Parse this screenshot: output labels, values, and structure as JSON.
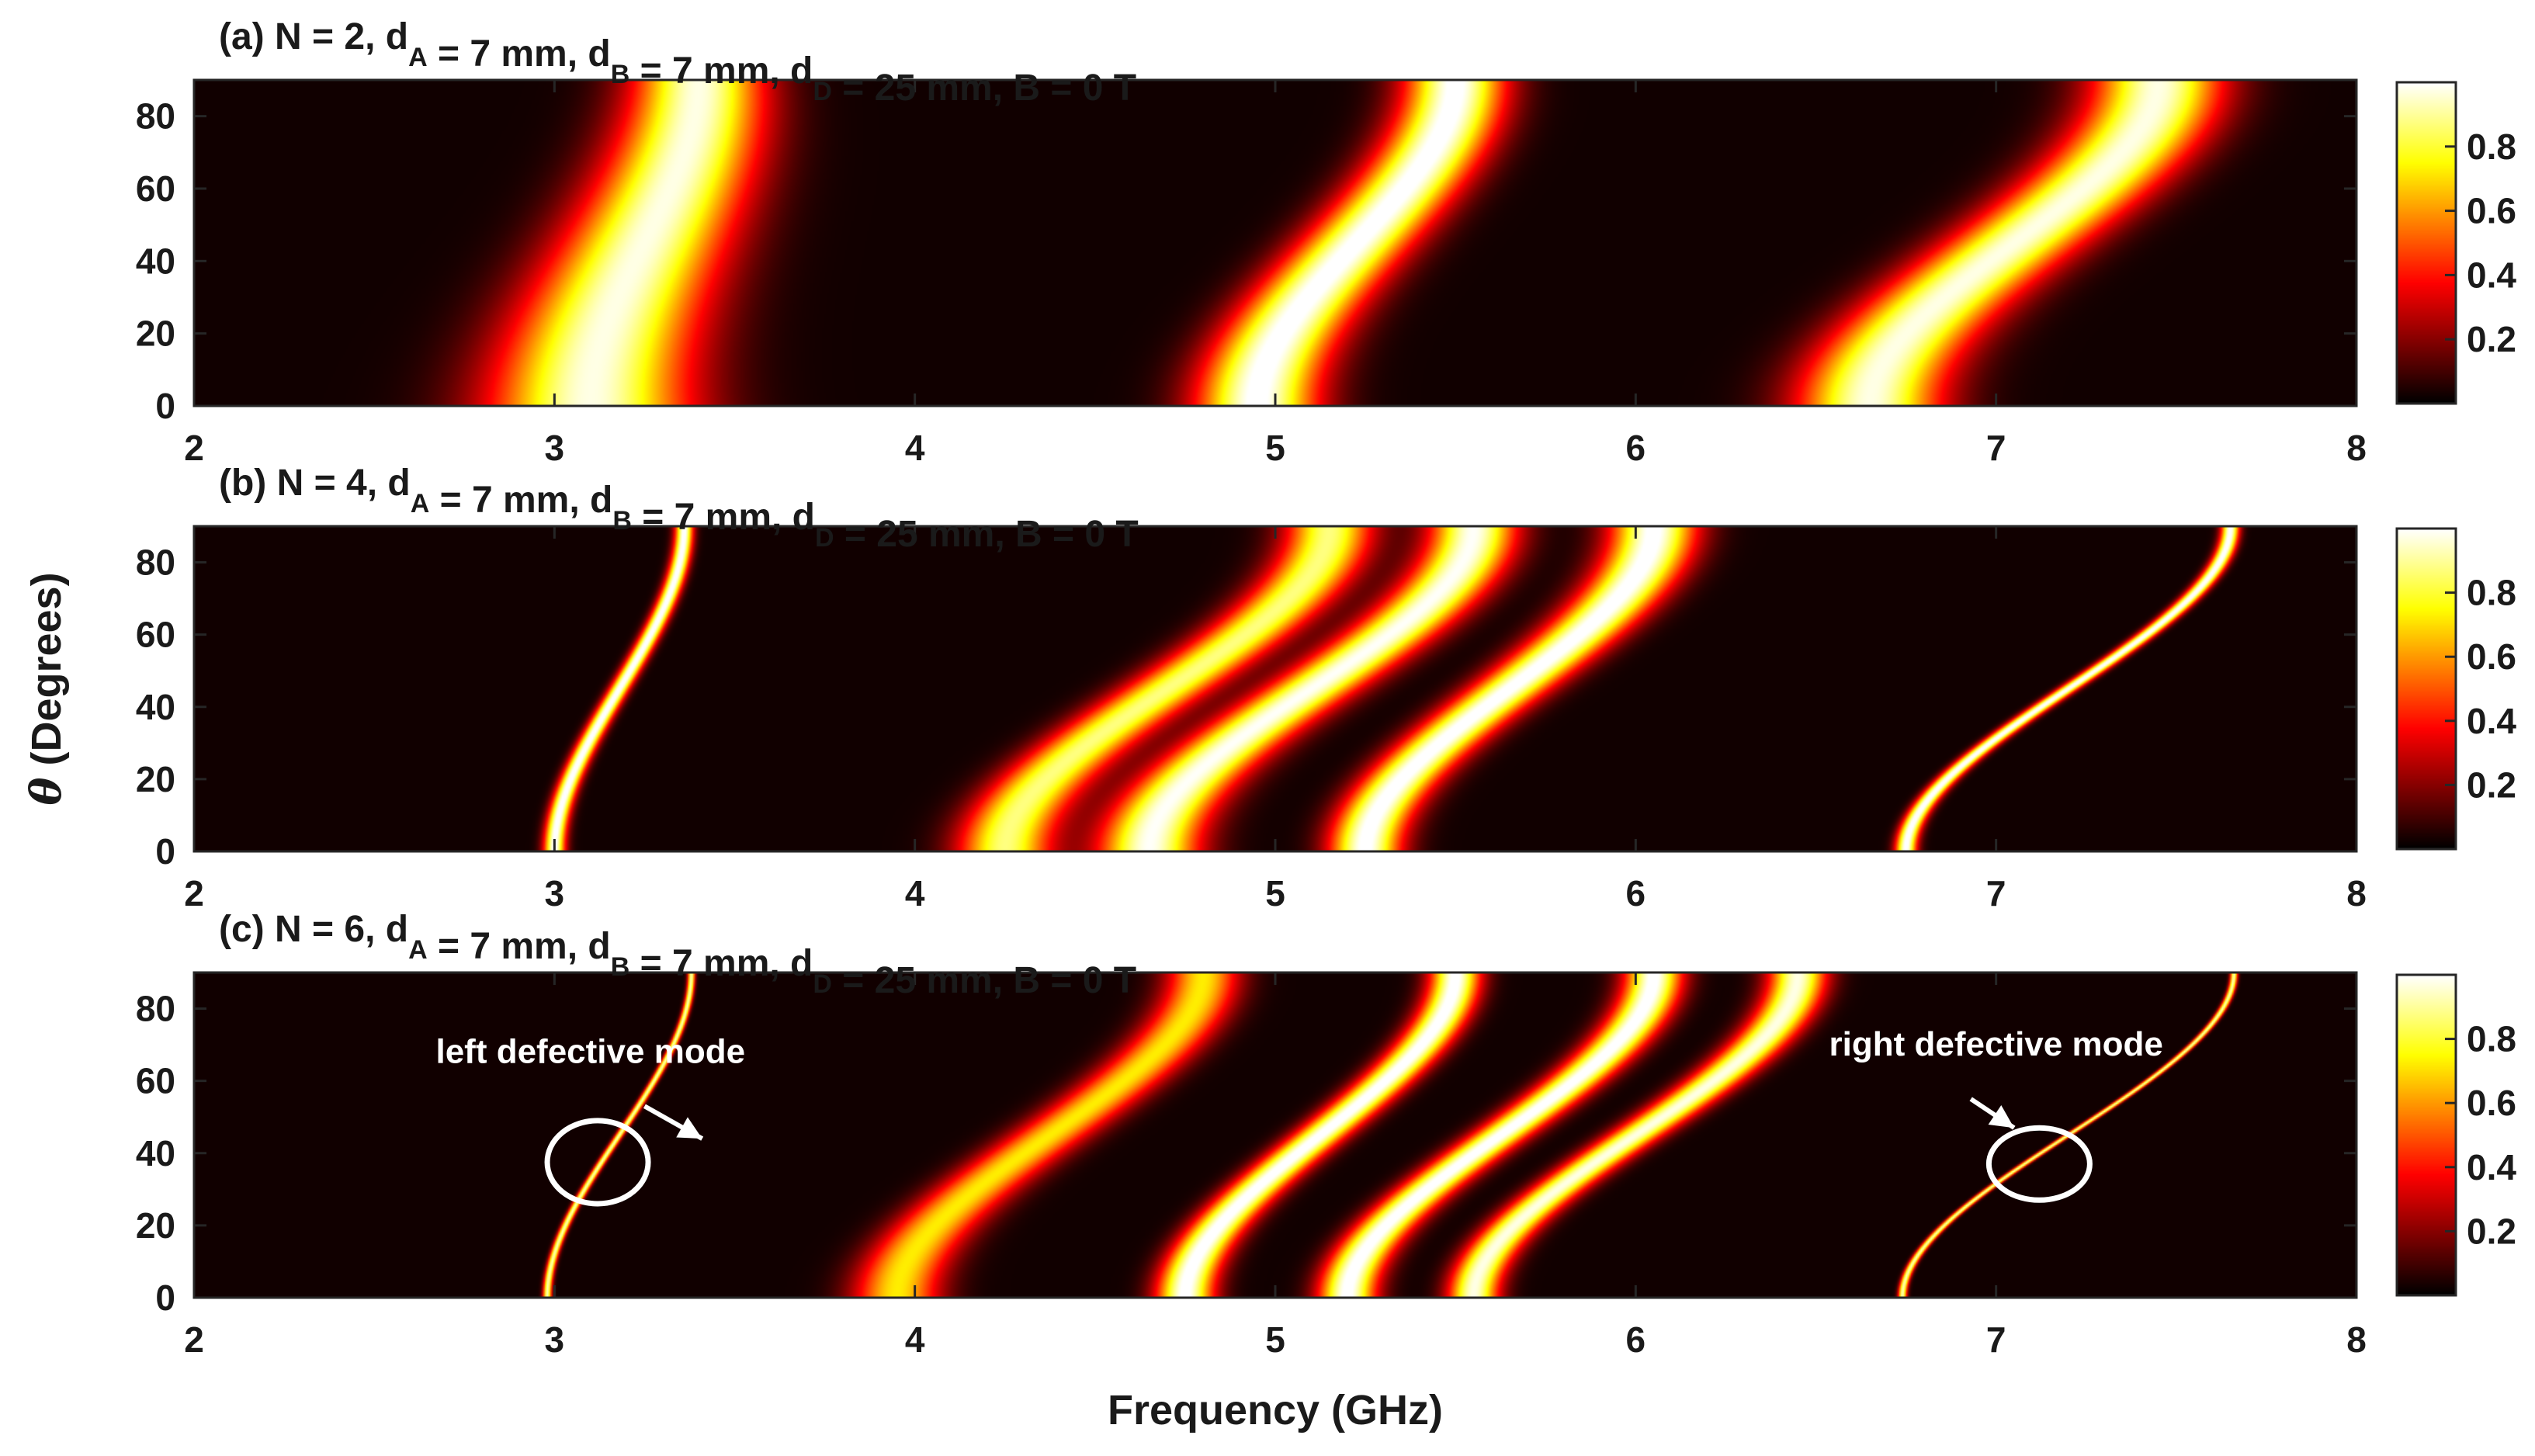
{
  "chart_data": {
    "type": "heatmap",
    "xlabel": "Frequency (GHz)",
    "ylabel_symbol": "θ",
    "ylabel": "(Degrees)",
    "xlim": [
      2,
      8
    ],
    "ylim": [
      0,
      90
    ],
    "x_ticks": [
      2,
      3,
      4,
      5,
      6,
      7,
      8
    ],
    "y_ticks": [
      0,
      20,
      40,
      60,
      80
    ],
    "colorbar": {
      "colormap": "hot",
      "range": [
        0,
        1
      ],
      "ticks": [
        0.2,
        0.4,
        0.6,
        0.8
      ]
    },
    "panels": [
      {
        "title_parts": [
          {
            "t": "(a) N = 2, d"
          },
          {
            "t": "A",
            "sub": true
          },
          {
            "t": " = 7 mm, d"
          },
          {
            "t": "B",
            "sub": true
          },
          {
            "t": " = 7 mm, d"
          },
          {
            "t": "D",
            "sub": true
          },
          {
            "t": " = 25 mm, B = 0 T"
          }
        ],
        "bands": [
          {
            "f0": 3.1,
            "shift": 0.3,
            "w0": 0.28,
            "w90": 0.18,
            "peak": 0.95
          },
          {
            "f0": 4.95,
            "shift": 0.55,
            "w0": 0.17,
            "w90": 0.14,
            "peak": 1.0
          },
          {
            "f0": 6.65,
            "shift": 0.8,
            "w0": 0.2,
            "w90": 0.18,
            "peak": 0.95
          }
        ],
        "annotations": []
      },
      {
        "title_parts": [
          {
            "t": "(b) N = 4, d"
          },
          {
            "t": "A",
            "sub": true
          },
          {
            "t": " = 7 mm, d"
          },
          {
            "t": "B",
            "sub": true
          },
          {
            "t": " = 7 mm, d"
          },
          {
            "t": "D",
            "sub": true
          },
          {
            "t": " = 25 mm, B = 0 T"
          }
        ],
        "bands": [
          {
            "f0": 3.0,
            "shift": 0.36,
            "w0": 0.03,
            "w90": 0.025,
            "peak": 1.0
          },
          {
            "f0": 4.25,
            "shift": 0.9,
            "w0": 0.13,
            "w90": 0.12,
            "peak": 0.85
          },
          {
            "f0": 4.65,
            "shift": 0.9,
            "w0": 0.14,
            "w90": 0.12,
            "peak": 0.97
          },
          {
            "f0": 5.25,
            "shift": 0.8,
            "w0": 0.1,
            "w90": 0.12,
            "peak": 1.0
          },
          {
            "f0": 6.75,
            "shift": 0.9,
            "w0": 0.03,
            "w90": 0.025,
            "peak": 1.0
          }
        ],
        "annotations": []
      },
      {
        "title_parts": [
          {
            "t": "(c) N = 6, d"
          },
          {
            "t": "A",
            "sub": true
          },
          {
            "t": " = 7 mm, d"
          },
          {
            "t": "B",
            "sub": true
          },
          {
            "t": " = 7 mm, d"
          },
          {
            "t": "D",
            "sub": true
          },
          {
            "t": " = 25 mm, B = 0 T"
          }
        ],
        "bands": [
          {
            "f0": 2.98,
            "shift": 0.4,
            "w0": 0.012,
            "w90": 0.01,
            "peak": 0.9
          },
          {
            "f0": 3.95,
            "shift": 0.85,
            "w0": 0.12,
            "w90": 0.1,
            "peak": 0.7
          },
          {
            "f0": 4.75,
            "shift": 0.75,
            "w0": 0.08,
            "w90": 0.07,
            "peak": 1.0
          },
          {
            "f0": 5.2,
            "shift": 0.85,
            "w0": 0.08,
            "w90": 0.08,
            "peak": 1.0
          },
          {
            "f0": 5.55,
            "shift": 0.9,
            "w0": 0.07,
            "w90": 0.08,
            "peak": 0.95
          },
          {
            "f0": 6.74,
            "shift": 0.92,
            "w0": 0.012,
            "w90": 0.01,
            "peak": 0.9
          }
        ],
        "annotations": [
          {
            "label": "left  defective mode",
            "label_x": 3.1,
            "label_y": 65,
            "arrow_from": [
              3.25,
              53
            ],
            "arrow_to": [
              3.41,
              44
            ],
            "circle_center": [
              3.12,
              37.5
            ],
            "circle_rx": 0.14,
            "circle_ry": 11.5
          },
          {
            "label": "right defective mode",
            "label_x": 7.0,
            "label_y": 67,
            "arrow_from": [
              6.93,
              55
            ],
            "arrow_to": [
              7.05,
              47
            ],
            "circle_center": [
              7.12,
              37
            ],
            "circle_rx": 0.14,
            "circle_ry": 10
          }
        ]
      }
    ]
  }
}
